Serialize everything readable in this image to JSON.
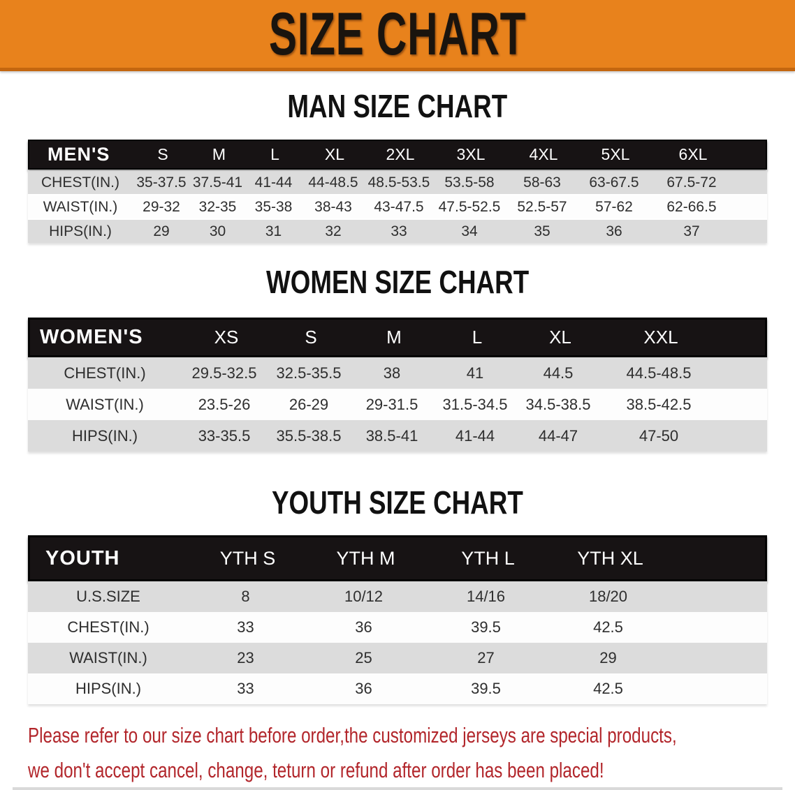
{
  "banner": {
    "title": "SIZE CHART"
  },
  "sections": {
    "men": {
      "title": "MAN SIZE CHART"
    },
    "women": {
      "title": "WOMEN SIZE CHART"
    },
    "youth": {
      "title": "YOUTH SIZE CHART"
    }
  },
  "tables": {
    "men": {
      "label": "MEN'S",
      "sizes": [
        "S",
        "M",
        "L",
        "XL",
        "2XL",
        "3XL",
        "4XL",
        "5XL",
        "6XL"
      ],
      "rows": [
        {
          "label": "CHEST(IN.)",
          "values": [
            "35-37.5",
            "37.5-41",
            "41-44",
            "44-48.5",
            "48.5-53.5",
            "53.5-58",
            "58-63",
            "63-67.5",
            "67.5-72"
          ]
        },
        {
          "label": "WAIST(IN.)",
          "values": [
            "29-32",
            "32-35",
            "35-38",
            "38-43",
            "43-47.5",
            "47.5-52.5",
            "52.5-57",
            "57-62",
            "62-66.5"
          ]
        },
        {
          "label": "HIPS(IN.)",
          "values": [
            "29",
            "30",
            "31",
            "32",
            "33",
            "34",
            "35",
            "36",
            "37"
          ]
        }
      ]
    },
    "women": {
      "label": "WOMEN'S",
      "sizes": [
        "XS",
        "S",
        "M",
        "L",
        "XL",
        "XXL"
      ],
      "rows": [
        {
          "label": "CHEST(IN.)",
          "values": [
            "29.5-32.5",
            "32.5-35.5",
            "38",
            "41",
            "44.5",
            "44.5-48.5"
          ]
        },
        {
          "label": "WAIST(IN.)",
          "values": [
            "23.5-26",
            "26-29",
            "29-31.5",
            "31.5-34.5",
            "34.5-38.5",
            "38.5-42.5"
          ]
        },
        {
          "label": "HIPS(IN.)",
          "values": [
            "33-35.5",
            "35.5-38.5",
            "38.5-41",
            "41-44",
            "44-47",
            "47-50"
          ]
        }
      ]
    },
    "youth": {
      "label": "YOUTH",
      "sizes": [
        "YTH S",
        "YTH M",
        "YTH L",
        "YTH XL"
      ],
      "rows": [
        {
          "label": "U.S.SIZE",
          "values": [
            "8",
            "10/12",
            "14/16",
            "18/20"
          ]
        },
        {
          "label": "CHEST(IN.)",
          "values": [
            "33",
            "36",
            "39.5",
            "42.5"
          ]
        },
        {
          "label": "WAIST(IN.)",
          "values": [
            "23",
            "25",
            "27",
            "29"
          ]
        },
        {
          "label": "HIPS(IN.)",
          "values": [
            "33",
            "36",
            "39.5",
            "42.5"
          ]
        }
      ]
    }
  },
  "disclaimer": {
    "line1": "Please refer to our size chart before order,the customized jerseys are special products,",
    "line2": "we don't accept cancel, change, teturn or refund after order has been placed!"
  },
  "theme": {
    "accent": "#e8821c",
    "accent_dark": "#c4660f",
    "header_bg": "#171314",
    "row_gray": "#dcdcdc",
    "row_white": "#fdfdfd",
    "text_dark": "#2e2e2e",
    "red": "#b2262b"
  }
}
